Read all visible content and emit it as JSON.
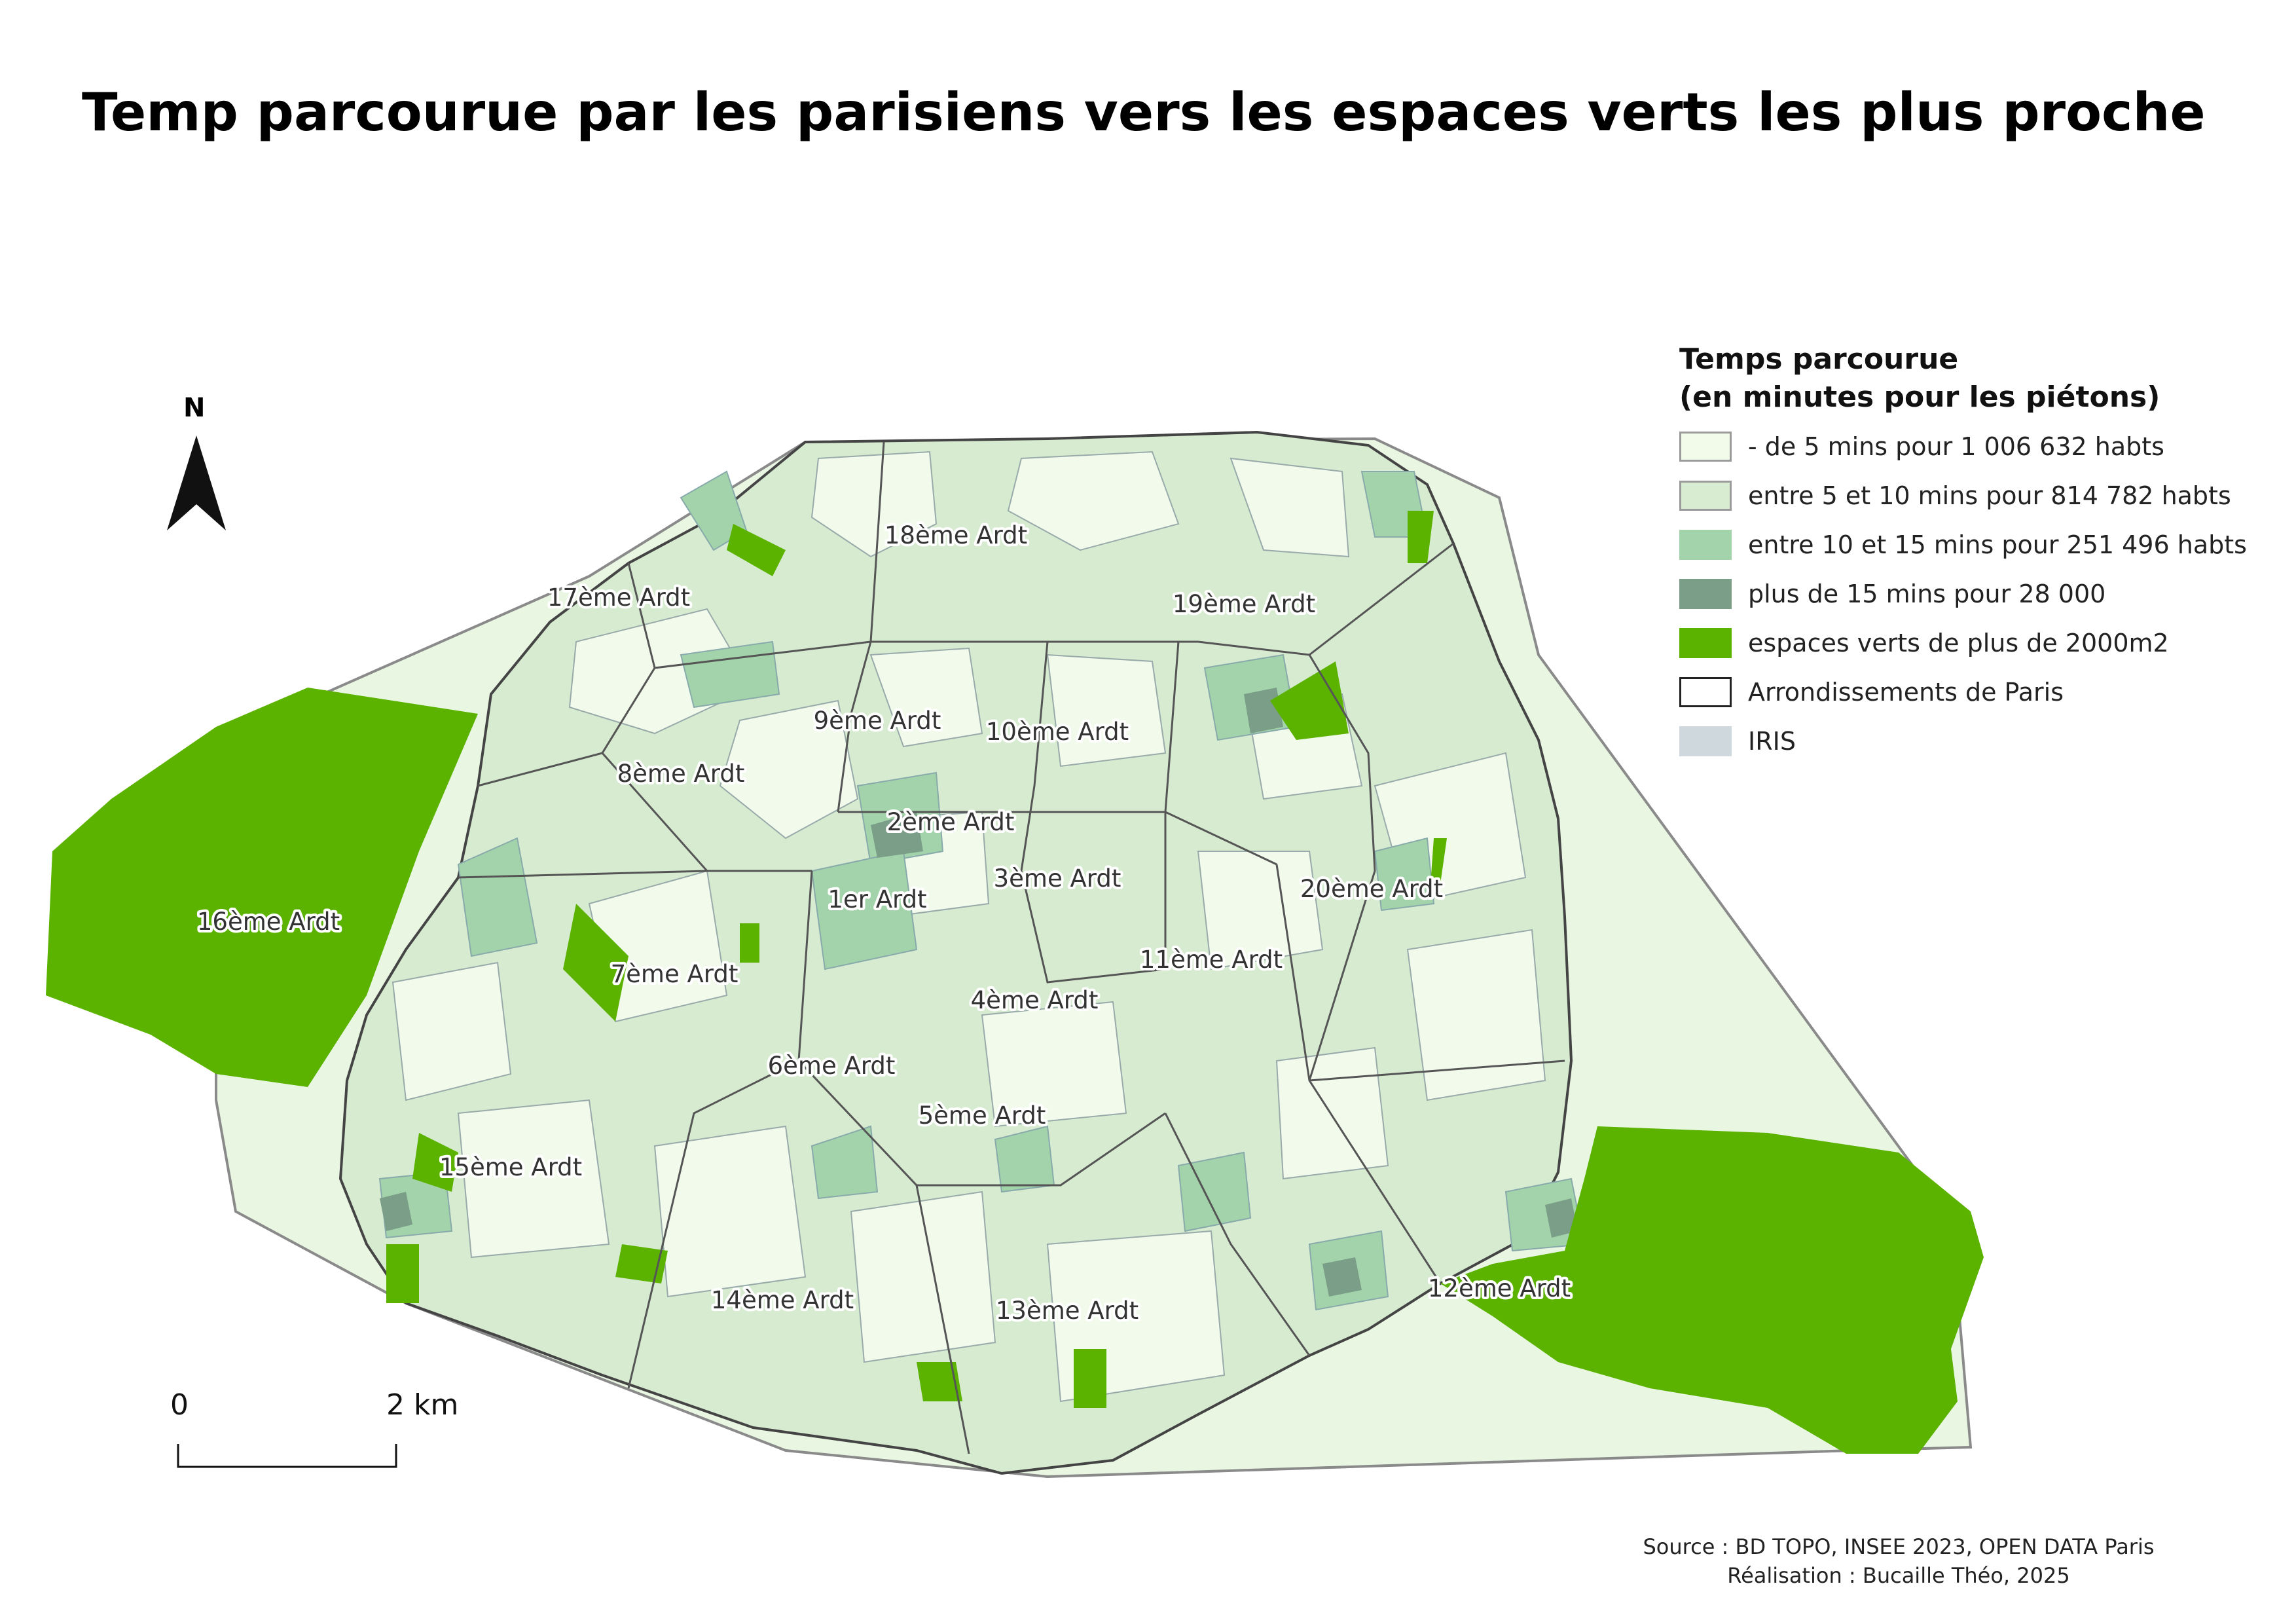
{
  "title": "Temp parcourue par les parisiens vers les espaces verts les plus proche",
  "legend": {
    "title_line1": "Temps parcourue",
    "title_line2": "(en minutes pour les piétons)",
    "items": [
      {
        "label": "- de 5 mins pour 1 006 632 habts",
        "color": "#f2fbea",
        "border": "#9a9a9a"
      },
      {
        "label": "entre 5 et 10 mins pour 814 782 habts",
        "color": "#d8ecd2",
        "border": "#9a9a9a"
      },
      {
        "label": "entre 10 et 15 mins pour 251 496 habts",
        "color": "#a3d3aa",
        "border": "none"
      },
      {
        "label": "plus de 15 mins pour 28 000",
        "color": "#7a9e88",
        "border": "none"
      },
      {
        "label": "espaces verts de plus de 2000m2",
        "color": "#5bb300",
        "border": "none"
      },
      {
        "label": "Arrondissements de Paris",
        "color": "#ffffff",
        "border": "#222222"
      },
      {
        "label": "IRIS",
        "color": "#cfd8dc",
        "border": "none"
      }
    ]
  },
  "arrondissements": [
    "1er Ardt",
    "2ème Ardt",
    "3ème Ardt",
    "4ème Ardt",
    "5ème Ardt",
    "6ème Ardt",
    "7ème Ardt",
    "8ème Ardt",
    "9ème Ardt",
    "10ème Ardt",
    "11ème Ardt",
    "12ème Ardt",
    "13ème Ardt",
    "14ème Ardt",
    "15ème Ardt",
    "16ème Ardt",
    "17ème Ardt",
    "18ème Ardt",
    "19ème Ardt",
    "20ème Ardt"
  ],
  "north_arrow": "N",
  "scale_bar": {
    "start": "0",
    "end": "2 km"
  },
  "source": {
    "line1": "Source : BD TOPO, INSEE 2023, OPEN DATA Paris",
    "line2": "Réalisation : Bucaille Théo, 2025"
  }
}
